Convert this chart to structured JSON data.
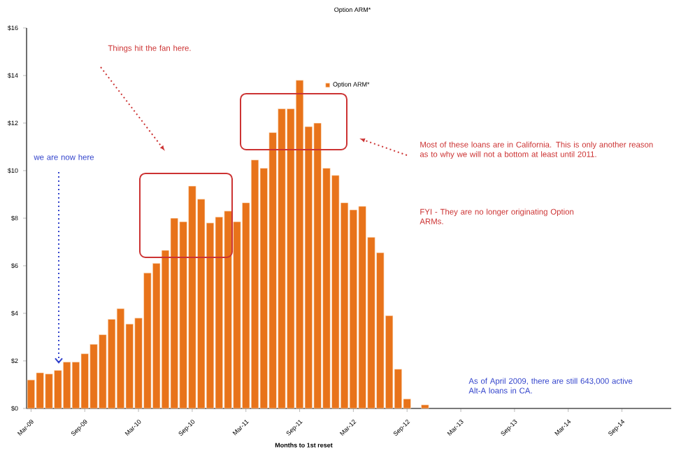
{
  "chart_data": {
    "type": "bar",
    "title": "Option ARM*",
    "xlabel": "Months to 1st reset",
    "categories": [
      "Mar-09",
      null,
      null,
      null,
      null,
      null,
      "Sep-09",
      null,
      null,
      null,
      null,
      null,
      "Mar-10",
      null,
      null,
      null,
      null,
      null,
      "Sep-10",
      null,
      null,
      null,
      null,
      null,
      "Mar-11",
      null,
      null,
      null,
      null,
      null,
      "Sep-11",
      null,
      null,
      null,
      null,
      null,
      "Mar-12",
      null,
      null,
      null,
      null,
      null,
      "Sep-12",
      null,
      null,
      null,
      null,
      null,
      "Mar-13",
      null,
      null,
      null,
      null,
      null,
      "Sep-13",
      null,
      null,
      null,
      null,
      null,
      "Mar-14",
      null,
      null,
      null,
      null,
      null,
      "Sep-14",
      null,
      null,
      null,
      null,
      null
    ],
    "series": [
      {
        "name": "Option ARM*",
        "color": "#e8731a",
        "values": [
          1.2,
          1.5,
          1.45,
          1.6,
          1.95,
          1.95,
          2.3,
          2.7,
          3.1,
          3.75,
          4.2,
          3.55,
          3.8,
          5.7,
          6.1,
          6.65,
          8.0,
          7.85,
          9.35,
          8.8,
          7.8,
          8.05,
          8.3,
          7.85,
          8.65,
          10.45,
          10.1,
          11.6,
          12.6,
          12.6,
          13.8,
          11.85,
          12.0,
          10.1,
          9.8,
          8.65,
          8.35,
          8.5,
          7.2,
          6.55,
          3.9,
          1.65,
          0.4,
          null,
          0.15,
          null,
          null,
          null,
          null,
          null,
          null,
          null,
          null,
          null,
          null,
          null,
          null,
          null,
          null,
          null,
          null,
          null,
          null,
          null,
          null,
          null,
          null,
          null,
          null,
          null,
          null,
          null
        ]
      }
    ],
    "ylim": [
      0,
      16
    ],
    "yticks": [
      {
        "value": 0,
        "label": "$0"
      },
      {
        "value": 2,
        "label": "$2"
      },
      {
        "value": 4,
        "label": "$4"
      },
      {
        "value": 6,
        "label": "$6"
      },
      {
        "value": 8,
        "label": "$8"
      },
      {
        "value": 10,
        "label": "$10"
      },
      {
        "value": 12,
        "label": "$12"
      },
      {
        "value": 14,
        "label": "$14"
      },
      {
        "value": 16,
        "label": "$16"
      }
    ],
    "legend": "top",
    "annotations": [
      "Things hit the fan here.",
      "we are now here",
      "Most of these loans are in California.  This is only another reason as to why we will not a bottom at least until 2011.",
      "FYI - They are no longer originating Option ARMs.",
      "As of April 2009, there are still 643,000 active Alt-A loans in CA."
    ]
  }
}
